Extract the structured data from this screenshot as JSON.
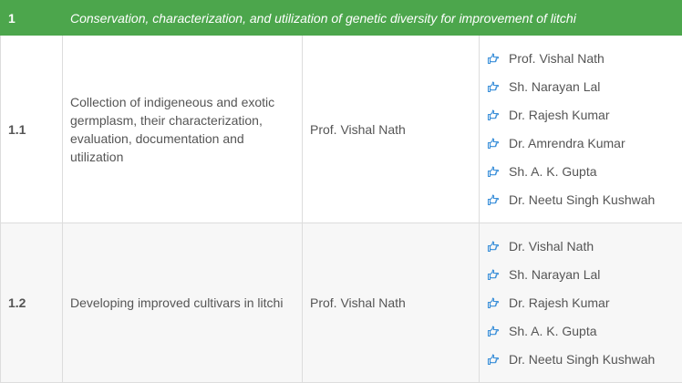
{
  "header": {
    "num": "1",
    "title": "Conservation, characterization, and utilization of genetic diversity for improvement of litchi"
  },
  "rows": [
    {
      "num": "1.1",
      "description": "Collection of indigeneous and exotic germplasm, their characterization, evaluation, documentation and utilization",
      "pi": "Prof. Vishal Nath",
      "members": [
        "Prof. Vishal Nath",
        "Sh. Narayan Lal",
        "Dr. Rajesh Kumar",
        "Dr. Amrendra Kumar",
        "Sh. A. K. Gupta",
        "Dr. Neetu Singh Kushwah"
      ]
    },
    {
      "num": "1.2",
      "description": "Developing improved cultivars in litchi",
      "pi": "Prof. Vishal Nath",
      "members": [
        "Dr. Vishal Nath",
        "Sh. Narayan Lal",
        "Dr. Rajesh Kumar",
        "Sh. A. K. Gupta",
        "Dr. Neetu Singh Kushwah"
      ]
    }
  ],
  "colors": {
    "header_bg": "#4ca64c",
    "icon": "#3a8fd9"
  },
  "icons": {
    "member_bullet": "hand-point-right-icon"
  }
}
